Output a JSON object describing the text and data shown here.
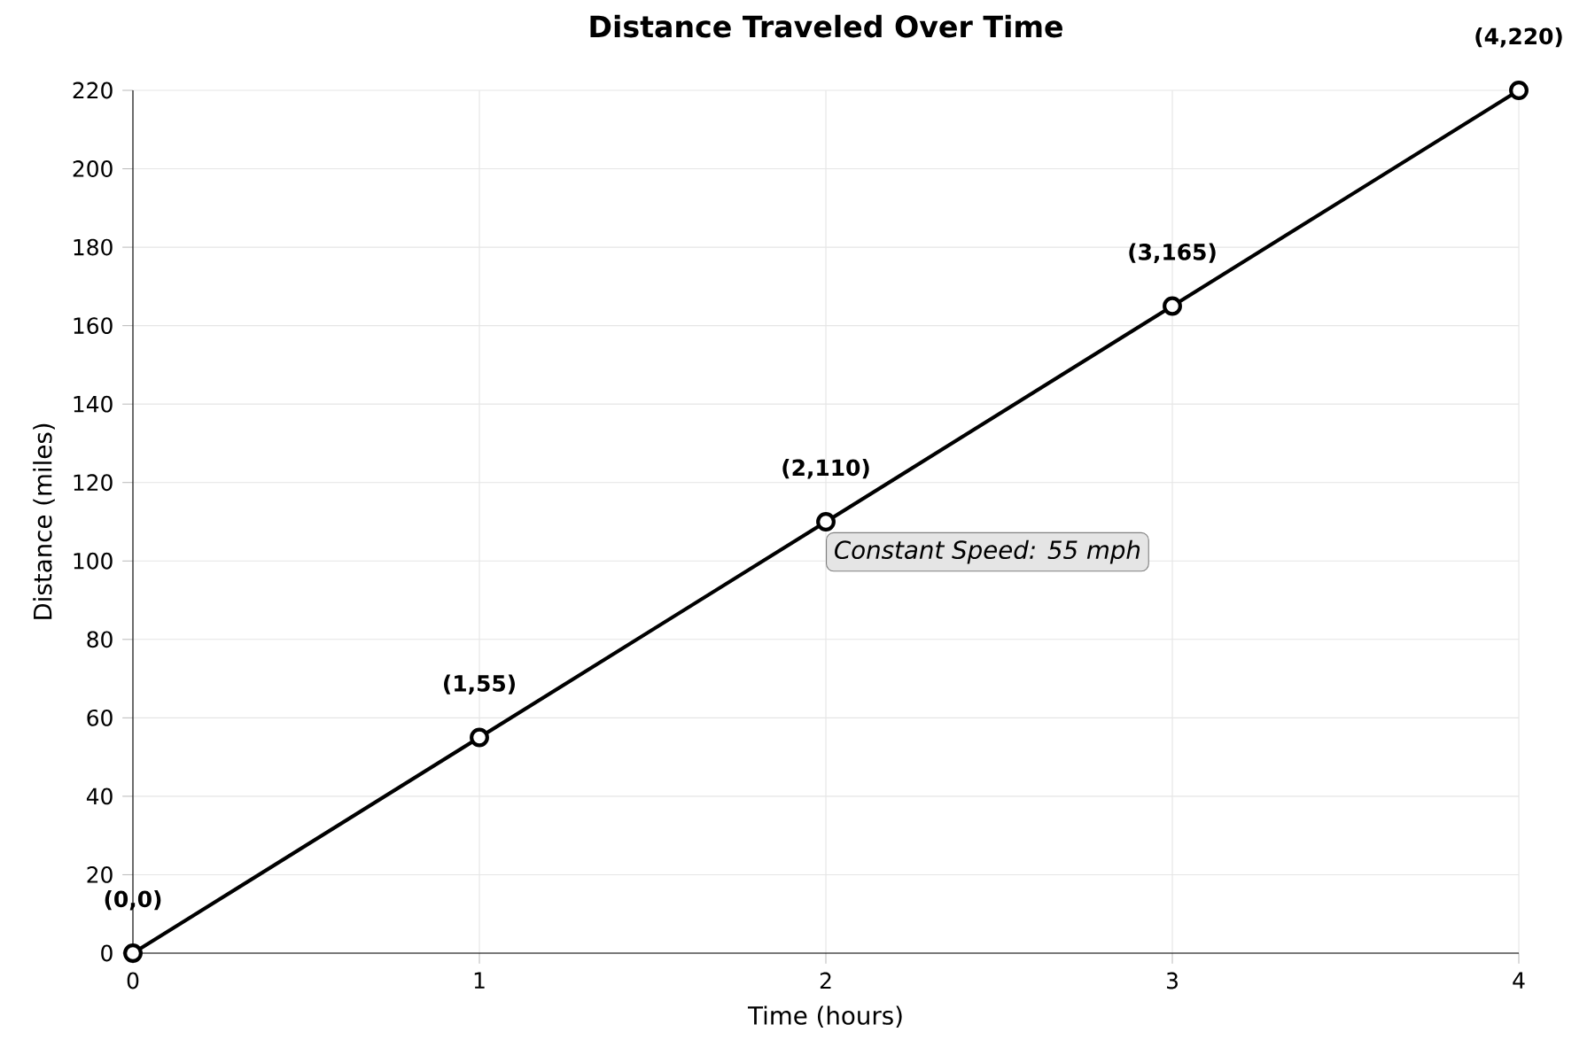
{
  "chart_data": {
    "type": "line",
    "title": "Distance Traveled Over Time",
    "xlabel": "Time (hours)",
    "ylabel": "Distance (miles)",
    "x": [
      0,
      1,
      2,
      3,
      4
    ],
    "series": [
      {
        "color": "#000000",
        "values": [
          0,
          55,
          110,
          165,
          220
        ]
      }
    ],
    "xlim": [
      0,
      4
    ],
    "ylim": [
      0,
      220
    ],
    "xticks": [
      0,
      1,
      2,
      3,
      4
    ],
    "yticks": [
      0,
      20,
      40,
      60,
      80,
      100,
      120,
      140,
      160,
      180,
      200,
      220
    ],
    "grid": true,
    "marker": "circle",
    "line_style": "solid",
    "annotations": [
      {
        "text": "(0,0)",
        "x": 0,
        "y": 0
      },
      {
        "text": "(1,55)",
        "x": 1,
        "y": 55
      },
      {
        "text": "(2,110)",
        "x": 2,
        "y": 110
      },
      {
        "text": "(3,165)",
        "x": 3,
        "y": 165
      },
      {
        "text": "(4,220)",
        "x": 4,
        "y": 220
      },
      "Constant Speed: 55 mph"
    ]
  }
}
